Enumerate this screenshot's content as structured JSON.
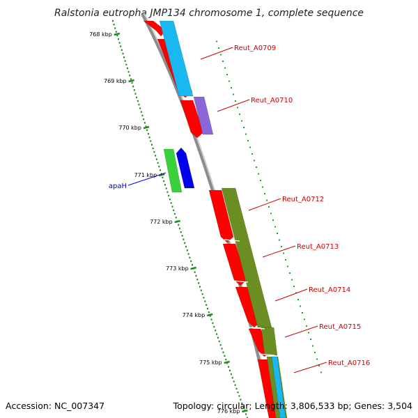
{
  "title": "Ralstonia eutropha JMP134 chromosome 1, complete sequence",
  "footer": {
    "accession": "Accession: NC_007347",
    "summary": "Topology: circular; Length: 3,806,533 bp; Genes: 3,504"
  },
  "colors": {
    "backbone": "#8c8c8c",
    "ruler_tick": "#1f8a1f",
    "ruler_dot": "#1f8a1f",
    "cds_red": "#ff0000",
    "cds_cyan": "#1ab8f0",
    "cds_purple": "#8a66d6",
    "cds_olive": "#6b8e23",
    "gene_green": "#3ad23a",
    "gene_blue": "#0000ee",
    "label_red": "#cc0000",
    "label_blue": "#0000cc",
    "divider_tick": "#11aa11"
  },
  "ruler": {
    "labels": [
      "768 kbp",
      "769 kbp",
      "770 kbp",
      "771 kbp",
      "772 kbp",
      "773 kbp",
      "774 kbp",
      "775 kbp",
      "776 kbp"
    ]
  },
  "features": {
    "labels": [
      {
        "text": "Reut_A0709",
        "color": "red"
      },
      {
        "text": "Reut_A0710",
        "color": "red"
      },
      {
        "text": "apaH",
        "color": "blue"
      },
      {
        "text": "Reut_A0712",
        "color": "red"
      },
      {
        "text": "Reut_A0713",
        "color": "red"
      },
      {
        "text": "Reut_A0714",
        "color": "red"
      },
      {
        "text": "Reut_A0715",
        "color": "red"
      },
      {
        "text": "Reut_A0716",
        "color": "red"
      }
    ]
  }
}
